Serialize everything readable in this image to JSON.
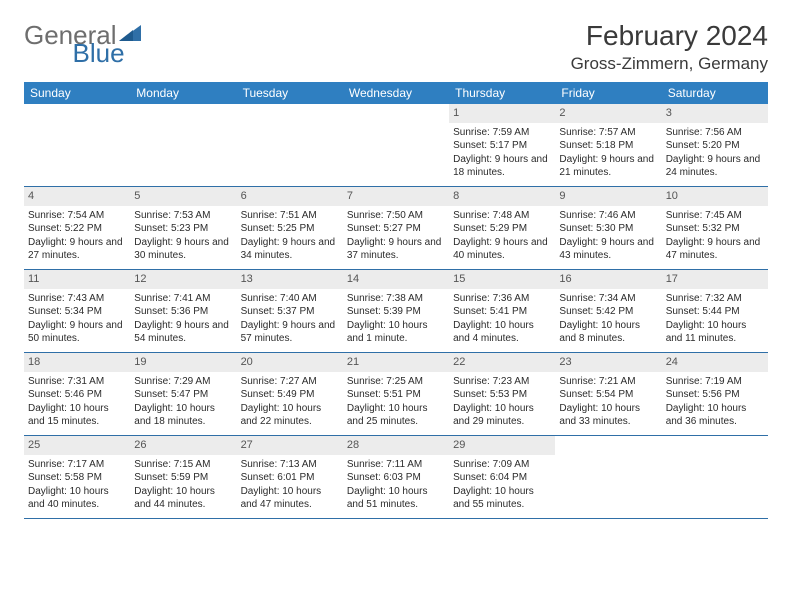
{
  "logo": {
    "text_gray": "General",
    "text_blue": "Blue"
  },
  "title": "February 2024",
  "location": "Gross-Zimmern, Germany",
  "colors": {
    "header_bg": "#2f7fc1",
    "header_text": "#ffffff",
    "daynum_bg": "#ececec",
    "rule": "#2f6fa7",
    "logo_gray": "#6e6e6e",
    "logo_blue": "#2f6fa7"
  },
  "day_names": [
    "Sunday",
    "Monday",
    "Tuesday",
    "Wednesday",
    "Thursday",
    "Friday",
    "Saturday"
  ],
  "weeks": [
    [
      null,
      null,
      null,
      null,
      {
        "n": "1",
        "sr": "7:59 AM",
        "ss": "5:17 PM",
        "dl": "9 hours and 18 minutes."
      },
      {
        "n": "2",
        "sr": "7:57 AM",
        "ss": "5:18 PM",
        "dl": "9 hours and 21 minutes."
      },
      {
        "n": "3",
        "sr": "7:56 AM",
        "ss": "5:20 PM",
        "dl": "9 hours and 24 minutes."
      }
    ],
    [
      {
        "n": "4",
        "sr": "7:54 AM",
        "ss": "5:22 PM",
        "dl": "9 hours and 27 minutes."
      },
      {
        "n": "5",
        "sr": "7:53 AM",
        "ss": "5:23 PM",
        "dl": "9 hours and 30 minutes."
      },
      {
        "n": "6",
        "sr": "7:51 AM",
        "ss": "5:25 PM",
        "dl": "9 hours and 34 minutes."
      },
      {
        "n": "7",
        "sr": "7:50 AM",
        "ss": "5:27 PM",
        "dl": "9 hours and 37 minutes."
      },
      {
        "n": "8",
        "sr": "7:48 AM",
        "ss": "5:29 PM",
        "dl": "9 hours and 40 minutes."
      },
      {
        "n": "9",
        "sr": "7:46 AM",
        "ss": "5:30 PM",
        "dl": "9 hours and 43 minutes."
      },
      {
        "n": "10",
        "sr": "7:45 AM",
        "ss": "5:32 PM",
        "dl": "9 hours and 47 minutes."
      }
    ],
    [
      {
        "n": "11",
        "sr": "7:43 AM",
        "ss": "5:34 PM",
        "dl": "9 hours and 50 minutes."
      },
      {
        "n": "12",
        "sr": "7:41 AM",
        "ss": "5:36 PM",
        "dl": "9 hours and 54 minutes."
      },
      {
        "n": "13",
        "sr": "7:40 AM",
        "ss": "5:37 PM",
        "dl": "9 hours and 57 minutes."
      },
      {
        "n": "14",
        "sr": "7:38 AM",
        "ss": "5:39 PM",
        "dl": "10 hours and 1 minute."
      },
      {
        "n": "15",
        "sr": "7:36 AM",
        "ss": "5:41 PM",
        "dl": "10 hours and 4 minutes."
      },
      {
        "n": "16",
        "sr": "7:34 AM",
        "ss": "5:42 PM",
        "dl": "10 hours and 8 minutes."
      },
      {
        "n": "17",
        "sr": "7:32 AM",
        "ss": "5:44 PM",
        "dl": "10 hours and 11 minutes."
      }
    ],
    [
      {
        "n": "18",
        "sr": "7:31 AM",
        "ss": "5:46 PM",
        "dl": "10 hours and 15 minutes."
      },
      {
        "n": "19",
        "sr": "7:29 AM",
        "ss": "5:47 PM",
        "dl": "10 hours and 18 minutes."
      },
      {
        "n": "20",
        "sr": "7:27 AM",
        "ss": "5:49 PM",
        "dl": "10 hours and 22 minutes."
      },
      {
        "n": "21",
        "sr": "7:25 AM",
        "ss": "5:51 PM",
        "dl": "10 hours and 25 minutes."
      },
      {
        "n": "22",
        "sr": "7:23 AM",
        "ss": "5:53 PM",
        "dl": "10 hours and 29 minutes."
      },
      {
        "n": "23",
        "sr": "7:21 AM",
        "ss": "5:54 PM",
        "dl": "10 hours and 33 minutes."
      },
      {
        "n": "24",
        "sr": "7:19 AM",
        "ss": "5:56 PM",
        "dl": "10 hours and 36 minutes."
      }
    ],
    [
      {
        "n": "25",
        "sr": "7:17 AM",
        "ss": "5:58 PM",
        "dl": "10 hours and 40 minutes."
      },
      {
        "n": "26",
        "sr": "7:15 AM",
        "ss": "5:59 PM",
        "dl": "10 hours and 44 minutes."
      },
      {
        "n": "27",
        "sr": "7:13 AM",
        "ss": "6:01 PM",
        "dl": "10 hours and 47 minutes."
      },
      {
        "n": "28",
        "sr": "7:11 AM",
        "ss": "6:03 PM",
        "dl": "10 hours and 51 minutes."
      },
      {
        "n": "29",
        "sr": "7:09 AM",
        "ss": "6:04 PM",
        "dl": "10 hours and 55 minutes."
      },
      null,
      null
    ]
  ],
  "labels": {
    "sunrise": "Sunrise:",
    "sunset": "Sunset:",
    "daylight": "Daylight:"
  }
}
